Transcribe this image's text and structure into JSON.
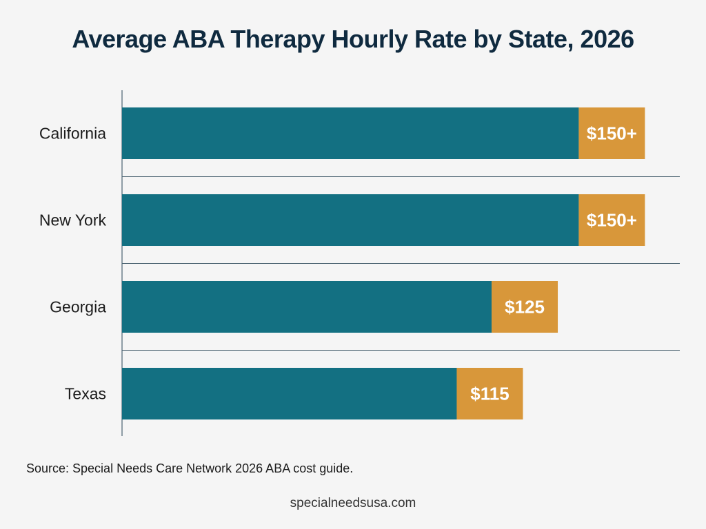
{
  "chart_data": {
    "type": "bar",
    "orientation": "horizontal",
    "title": "Average ABA Therapy Hourly Rate by State, 2026",
    "categories": [
      "California",
      "New York",
      "Georgia",
      "Texas"
    ],
    "values": [
      150,
      150,
      125,
      115
    ],
    "data_labels": [
      "$150+",
      "$150+",
      "$125",
      "$115"
    ],
    "xlim": [
      0,
      160
    ],
    "xlabel": "",
    "ylabel": "",
    "grid": false,
    "colors": {
      "bar": "#137082",
      "label_box": "#d8973a",
      "label_text": "#ffffff",
      "axis": "#4a6270"
    }
  },
  "footer": {
    "source": "Source: Special Needs Care Network 2026 ABA cost guide.",
    "site": "specialneedsusa.com"
  }
}
